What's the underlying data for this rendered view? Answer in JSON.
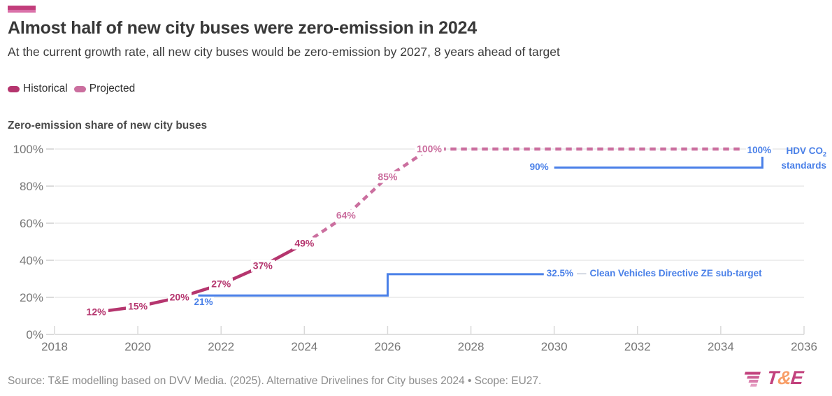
{
  "accent_color": "#c23d7b",
  "header": {
    "title": "Almost half of new city buses were zero-emission in 2024",
    "subtitle": "At the current growth rate, all new city buses would be zero-emission by 2027, 8 years ahead of target"
  },
  "legend": {
    "items": [
      {
        "label": "Historical",
        "color": "#b5356e"
      },
      {
        "label": "Projected",
        "color": "#cb6f9f"
      }
    ]
  },
  "chart_data": {
    "type": "line",
    "title": "Zero-emission share of new city buses",
    "x_axis": {
      "min": 2018,
      "max": 2036,
      "ticks": [
        2018,
        2020,
        2022,
        2024,
        2026,
        2028,
        2030,
        2032,
        2034,
        2036
      ]
    },
    "y_axis": {
      "min": 0,
      "max": 100,
      "ticks": [
        0,
        20,
        40,
        60,
        80,
        100
      ],
      "suffix": "%"
    },
    "grid": true,
    "series": [
      {
        "name": "Historical",
        "style": "solid",
        "color": "#b5356e",
        "points": [
          {
            "x": 2019,
            "y": 12,
            "label": "12%"
          },
          {
            "x": 2020,
            "y": 15,
            "label": "15%"
          },
          {
            "x": 2021,
            "y": 20,
            "label": "20%"
          },
          {
            "x": 2022,
            "y": 27,
            "label": "27%"
          },
          {
            "x": 2023,
            "y": 37,
            "label": "37%"
          },
          {
            "x": 2024,
            "y": 49,
            "label": "49%"
          }
        ]
      },
      {
        "name": "Projected",
        "style": "dashed",
        "color": "#cb6f9f",
        "points": [
          {
            "x": 2024,
            "y": 49
          },
          {
            "x": 2025,
            "y": 64,
            "label": "64%"
          },
          {
            "x": 2026,
            "y": 85,
            "label": "85%"
          },
          {
            "x": 2027,
            "y": 100,
            "label": "100%"
          }
        ],
        "extension": {
          "to_x": 2034.5,
          "y": 100
        }
      }
    ],
    "targets": [
      {
        "name": "Clean Vehicles Directive ZE sub-target",
        "color": "#4a80e8",
        "separator": "—",
        "steps": [
          {
            "from_x": 2021.45,
            "to_x": 2026,
            "y": 21,
            "label": "21%"
          },
          {
            "from_x": 2026,
            "to_x": 2029.75,
            "y": 32.5,
            "label": "32.5%"
          }
        ]
      },
      {
        "name": "HDV CO2 standards",
        "name_main": "HDV CO",
        "name_sub": "2",
        "name_line2": "standards",
        "color": "#4a80e8",
        "steps": [
          {
            "from_x": 2030,
            "to_x": 2035,
            "y": 90,
            "label": "90%"
          },
          {
            "at_x": 2035,
            "y": 100,
            "label": "100%"
          }
        ]
      }
    ]
  },
  "source": {
    "text": "Source: T&E modelling based on DVV Media. (2025). Alternative Drivelines for City buses 2024 • Scope: EU27."
  },
  "logo": {
    "t": "T",
    "amp": "&",
    "e": "E"
  }
}
